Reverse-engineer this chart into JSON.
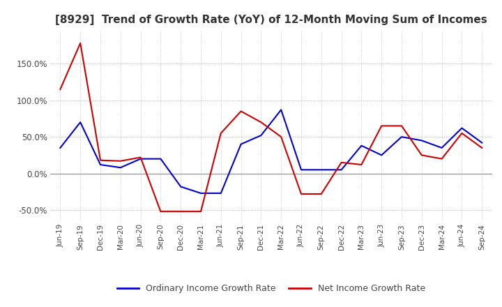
{
  "title": "[8929]  Trend of Growth Rate (YoY) of 12-Month Moving Sum of Incomes",
  "title_fontsize": 11,
  "ylim": [
    -65,
    195
  ],
  "yticks": [
    -50,
    0,
    50,
    100,
    150
  ],
  "yticklabels": [
    "-50.0%",
    "0.0%",
    "50.0%",
    "100.0%",
    "150.0%"
  ],
  "legend_labels": [
    "Ordinary Income Growth Rate",
    "Net Income Growth Rate"
  ],
  "legend_colors": [
    "#0000cc",
    "#cc0000"
  ],
  "ordinary_color": "#0000cc",
  "net_color": "#cc0000",
  "x_labels": [
    "Jun-19",
    "Sep-19",
    "Dec-19",
    "Mar-20",
    "Jun-20",
    "Sep-20",
    "Dec-20",
    "Mar-21",
    "Jun-21",
    "Sep-21",
    "Dec-21",
    "Mar-22",
    "Jun-22",
    "Sep-22",
    "Dec-22",
    "Mar-23",
    "Jun-23",
    "Sep-23",
    "Dec-23",
    "Mar-24",
    "Jun-24",
    "Sep-24"
  ],
  "ordinary_income_growth": [
    35,
    70,
    12,
    8,
    20,
    20,
    -18,
    -27,
    -27,
    40,
    52,
    87,
    5,
    5,
    5,
    38,
    25,
    50,
    45,
    35,
    62,
    42
  ],
  "net_income_growth": [
    115,
    178,
    18,
    17,
    22,
    -52,
    -52,
    -52,
    55,
    85,
    70,
    50,
    -28,
    -28,
    15,
    12,
    65,
    65,
    25,
    20,
    55,
    35
  ],
  "background_color": "#ffffff",
  "grid_color": "#aaaaaa",
  "zero_line_color": "#888888",
  "title_color": "#333333"
}
